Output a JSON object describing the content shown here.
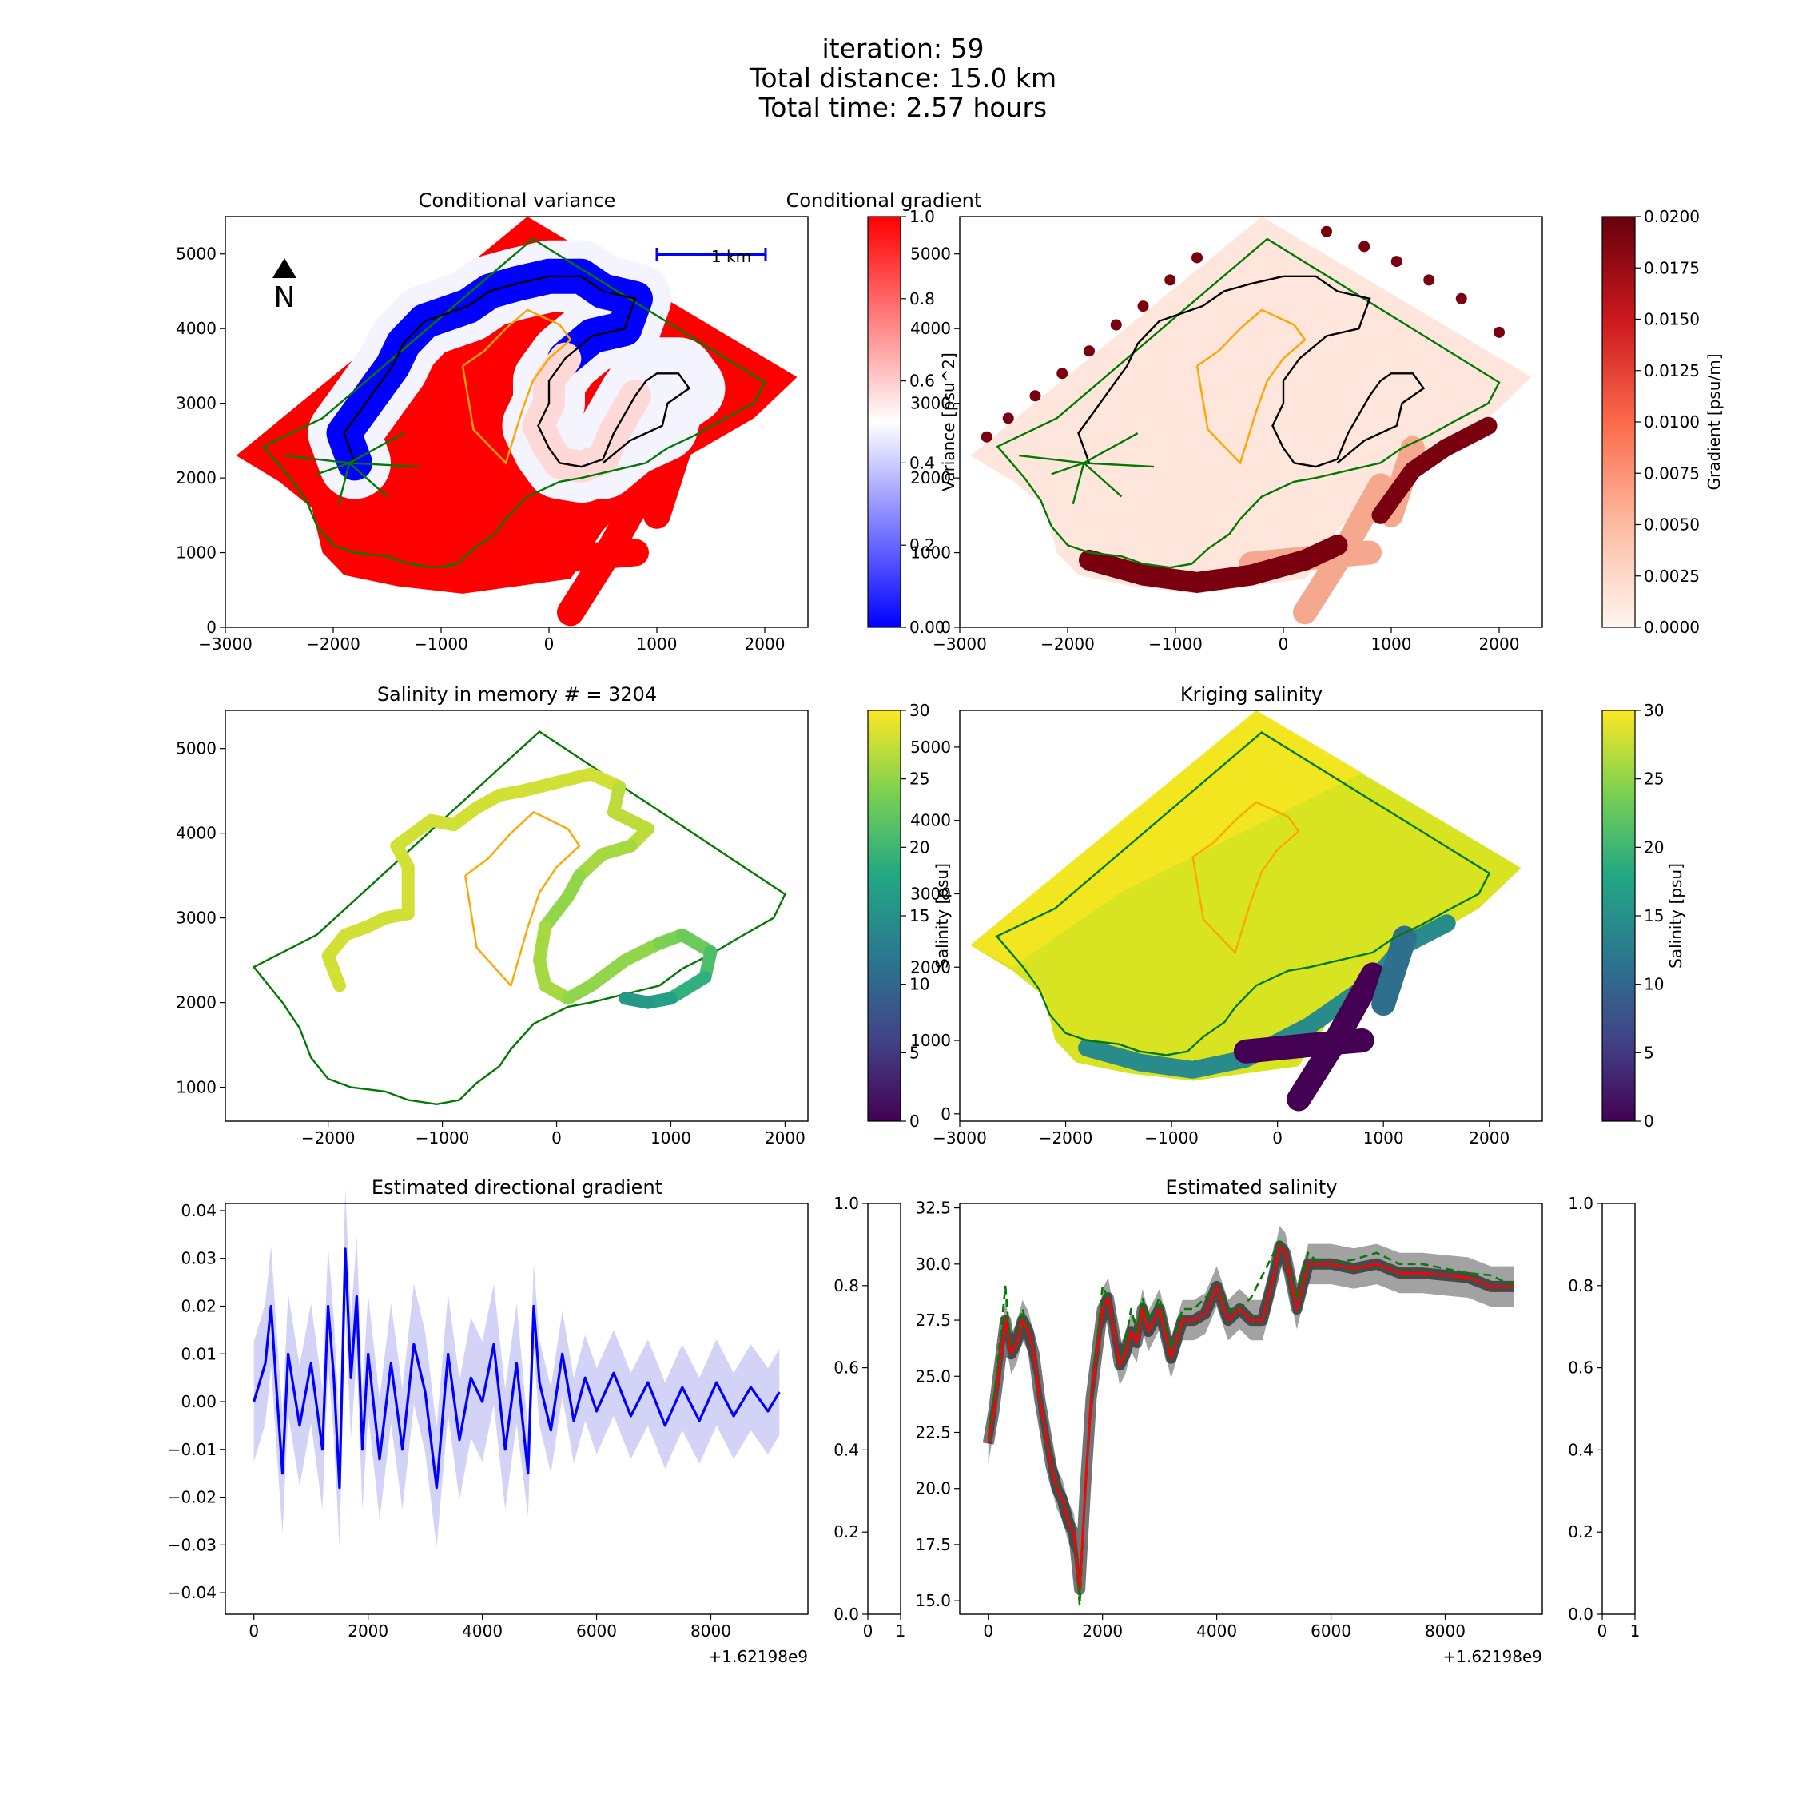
{
  "suptitle": [
    "iteration: 59",
    "Total distance: 15.0 km",
    "Total time: 2.57 hours"
  ],
  "colors": {
    "boundary": "#007a00",
    "contour": "#000000",
    "orange": "#ffa500",
    "scalebar": "#0000ff",
    "gradient_line": "#0000ff",
    "gradient_band": "#c8c8f5",
    "salinity_mean": "#ff0000",
    "salinity_true": "#008000",
    "salinity_samples": "#000000"
  },
  "panels": {
    "variance": {
      "title": "Conditional variance",
      "xticks": [
        "−3000",
        "−2000",
        "−1000",
        "0",
        "1000",
        "2000"
      ],
      "yticks": [
        "0",
        "1000",
        "2000",
        "3000",
        "4000",
        "5000"
      ],
      "xlim": [
        -3000,
        2400
      ],
      "ylim": [
        0,
        5500
      ],
      "north_label": "N",
      "scalebar_label": "1 km",
      "colorbar": {
        "label": "Variance [psu^2]",
        "ticks": [
          "0.00",
          "0.2",
          "0.4",
          "0.6",
          "0.8",
          "1.0"
        ],
        "cmap": "bwr"
      }
    },
    "gradient": {
      "title": "Conditional gradient",
      "xticks": [
        "−3000",
        "−2000",
        "−1000",
        "0",
        "1000",
        "2000"
      ],
      "yticks": [
        "0",
        "1000",
        "2000",
        "3000",
        "4000",
        "5000"
      ],
      "xlim": [
        -3000,
        2400
      ],
      "ylim": [
        0,
        5500
      ],
      "colorbar": {
        "label": "Gradient [psu/m]",
        "ticks": [
          "0.0000",
          "0.0025",
          "0.0050",
          "0.0075",
          "0.0100",
          "0.0125",
          "0.0150",
          "0.0175",
          "0.0200"
        ],
        "cmap": "Reds"
      }
    },
    "memory": {
      "title": "Salinity in memory # = 3204",
      "xticks": [
        "−2000",
        "−1000",
        "0",
        "1000",
        "2000"
      ],
      "yticks": [
        "1000",
        "2000",
        "3000",
        "4000",
        "5000"
      ],
      "xlim": [
        -2900,
        2200
      ],
      "ylim": [
        600,
        5450
      ],
      "colorbar": {
        "label": "Salinity [psu]",
        "ticks": [
          "0",
          "5",
          "10",
          "15",
          "20",
          "25",
          "30"
        ],
        "cmap": "viridis"
      }
    },
    "kriging": {
      "title": "Kriging salinity",
      "xticks": [
        "−3000",
        "−2000",
        "−1000",
        "0",
        "1000",
        "2000"
      ],
      "yticks": [
        "0",
        "1000",
        "2000",
        "3000",
        "4000",
        "5000"
      ],
      "xlim": [
        -3000,
        2500
      ],
      "ylim": [
        -100,
        5500
      ],
      "colorbar": {
        "label": "Salinity [psu]",
        "ticks": [
          "0",
          "5",
          "10",
          "15",
          "20",
          "25",
          "30"
        ],
        "cmap": "viridis"
      }
    },
    "dir_gradient": {
      "title": "Estimated directional gradient",
      "xticks": [
        "0",
        "2000",
        "4000",
        "6000",
        "8000"
      ],
      "yticks": [
        "−0.04",
        "−0.03",
        "−0.02",
        "−0.01",
        "0.00",
        "0.01",
        "0.02",
        "0.03",
        "0.04"
      ],
      "offset": "+1.62198e9",
      "xlim": [
        -500,
        9700
      ],
      "ylim": [
        -0.0445,
        0.0415
      ]
    },
    "est_salinity": {
      "title": "Estimated salinity",
      "xticks": [
        "0",
        "2000",
        "4000",
        "6000",
        "8000"
      ],
      "yticks": [
        "15.0",
        "17.5",
        "20.0",
        "22.5",
        "25.0",
        "27.5",
        "30.0",
        "32.5"
      ],
      "offset": "+1.62198e9",
      "xlim": [
        -500,
        9700
      ],
      "ylim": [
        14.4,
        32.7
      ]
    },
    "empty_left": {
      "xticks": [
        "0",
        "1"
      ],
      "yticks": [
        "0.0",
        "0.2",
        "0.4",
        "0.6",
        "0.8",
        "1.0"
      ]
    },
    "empty_right": {
      "xticks": [
        "0",
        "1"
      ],
      "yticks": [
        "0.0",
        "0.2",
        "0.4",
        "0.6",
        "0.8",
        "1.0"
      ]
    }
  },
  "chart_data": [
    {
      "type": "heatmap",
      "title": "Conditional variance",
      "xlim": [
        -3000,
        2400
      ],
      "ylim": [
        0,
        5500
      ],
      "boundary_polygon": [
        [
          -2650,
          2420
        ],
        [
          -2100,
          2800
        ],
        [
          -150,
          5200
        ],
        [
          2000,
          3280
        ],
        [
          1900,
          3000
        ],
        [
          1600,
          2770
        ],
        [
          1350,
          2570
        ],
        [
          1100,
          2400
        ],
        [
          900,
          2200
        ],
        [
          600,
          2100
        ],
        [
          300,
          2000
        ],
        [
          100,
          1950
        ],
        [
          -200,
          1750
        ],
        [
          -400,
          1450
        ],
        [
          -500,
          1250
        ],
        [
          -700,
          1050
        ],
        [
          -850,
          850
        ],
        [
          -1050,
          800
        ],
        [
          -1300,
          850
        ],
        [
          -1500,
          950
        ],
        [
          -1800,
          1000
        ],
        [
          -2000,
          1100
        ],
        [
          -2150,
          1350
        ],
        [
          -2250,
          1700
        ],
        [
          -2400,
          2000
        ],
        [
          -2650,
          2420
        ]
      ],
      "contour_path": [
        [
          -1800,
          2200
        ],
        [
          -1900,
          2600
        ],
        [
          -1750,
          2900
        ],
        [
          -1600,
          3200
        ],
        [
          -1450,
          3500
        ],
        [
          -1350,
          3800
        ],
        [
          -1150,
          4100
        ],
        [
          -950,
          4200
        ],
        [
          -750,
          4300
        ],
        [
          -550,
          4500
        ],
        [
          -300,
          4600
        ],
        [
          0,
          4700
        ],
        [
          300,
          4700
        ],
        [
          500,
          4500
        ],
        [
          800,
          4400
        ],
        [
          700,
          4000
        ],
        [
          400,
          3900
        ],
        [
          150,
          3600
        ],
        [
          0,
          3300
        ],
        [
          0,
          3000
        ],
        [
          -100,
          2700
        ],
        [
          0,
          2400
        ],
        [
          100,
          2200
        ],
        [
          300,
          2150
        ],
        [
          500,
          2250
        ],
        [
          600,
          2600
        ],
        [
          700,
          2850
        ],
        [
          800,
          3100
        ],
        [
          900,
          3300
        ],
        [
          1000,
          3400
        ],
        [
          1200,
          3400
        ],
        [
          1300,
          3200
        ],
        [
          1100,
          3000
        ],
        [
          1050,
          2700
        ],
        [
          900,
          2600
        ],
        [
          750,
          2500
        ],
        [
          500,
          2200
        ]
      ],
      "orange_path": [
        [
          -800,
          3500
        ],
        [
          -600,
          3700
        ],
        [
          -400,
          4000
        ],
        [
          -200,
          4250
        ],
        [
          100,
          4050
        ],
        [
          200,
          3850
        ],
        [
          0,
          3600
        ],
        [
          -150,
          3300
        ],
        [
          -250,
          2900
        ],
        [
          -400,
          2200
        ],
        [
          -700,
          2650
        ],
        [
          -800,
          3500
        ]
      ]
    },
    {
      "type": "heatmap",
      "title": "Conditional gradient",
      "xlim": [
        -3000,
        2400
      ],
      "ylim": [
        0,
        5500
      ]
    },
    {
      "type": "scatter",
      "title": "Salinity in memory # = 3204",
      "count": 3204,
      "track": [
        [
          -1900,
          2200
        ],
        [
          -2000,
          2550
        ],
        [
          -1850,
          2800
        ],
        [
          -1650,
          2900
        ],
        [
          -1500,
          3000
        ],
        [
          -1300,
          3050
        ],
        [
          -1300,
          3600
        ],
        [
          -1400,
          3850
        ],
        [
          -1100,
          4150
        ],
        [
          -900,
          4100
        ],
        [
          -700,
          4300
        ],
        [
          -500,
          4450
        ],
        [
          -300,
          4500
        ],
        [
          0,
          4600
        ],
        [
          300,
          4700
        ],
        [
          550,
          4550
        ],
        [
          500,
          4250
        ],
        [
          800,
          4050
        ],
        [
          650,
          3850
        ],
        [
          400,
          3750
        ],
        [
          200,
          3500
        ],
        [
          100,
          3250
        ],
        [
          -100,
          2900
        ],
        [
          -150,
          2500
        ],
        [
          -100,
          2200
        ],
        [
          100,
          2050
        ],
        [
          300,
          2200
        ],
        [
          600,
          2500
        ],
        [
          900,
          2700
        ],
        [
          1100,
          2800
        ],
        [
          1350,
          2600
        ],
        [
          1300,
          2300
        ],
        [
          1000,
          2050
        ],
        [
          800,
          2000
        ],
        [
          600,
          2050
        ]
      ],
      "color_values": [
        28,
        28,
        28,
        28,
        28,
        28,
        28,
        28,
        28,
        28,
        28,
        28,
        28,
        28,
        28,
        27,
        27,
        27,
        26,
        26,
        25,
        25,
        26,
        26,
        26,
        25,
        25,
        25,
        24,
        23,
        21,
        19,
        17,
        16,
        16
      ]
    },
    {
      "type": "heatmap",
      "title": "Kriging salinity",
      "xlim": [
        -3000,
        2500
      ],
      "ylim": [
        -100,
        5500
      ]
    },
    {
      "type": "line",
      "title": "Estimated directional gradient",
      "x": [
        0,
        200,
        300,
        400,
        500,
        600,
        800,
        1000,
        1200,
        1300,
        1400,
        1500,
        1600,
        1700,
        1800,
        1900,
        2000,
        2200,
        2400,
        2600,
        2800,
        3000,
        3200,
        3400,
        3600,
        3800,
        4000,
        4200,
        4400,
        4600,
        4800,
        4900,
        5000,
        5200,
        5400,
        5600,
        5800,
        6000,
        6300,
        6600,
        6900,
        7200,
        7500,
        7800,
        8100,
        8400,
        8700,
        9000,
        9200
      ],
      "y": [
        0.0,
        0.008,
        0.02,
        0.002,
        -0.015,
        0.01,
        -0.005,
        0.008,
        -0.01,
        0.02,
        0.005,
        -0.018,
        0.032,
        0.005,
        0.022,
        -0.01,
        0.01,
        -0.012,
        0.008,
        -0.01,
        0.012,
        0.002,
        -0.018,
        0.01,
        -0.008,
        0.005,
        0.0,
        0.012,
        -0.01,
        0.008,
        -0.015,
        0.02,
        0.004,
        -0.006,
        0.01,
        -0.004,
        0.005,
        -0.002,
        0.006,
        -0.003,
        0.004,
        -0.005,
        0.003,
        -0.004,
        0.004,
        -0.003,
        0.003,
        -0.002,
        0.002
      ]
    },
    {
      "type": "line",
      "title": "Estimated salinity",
      "x": [
        0,
        100,
        200,
        300,
        400,
        500,
        600,
        700,
        800,
        900,
        1000,
        1100,
        1200,
        1300,
        1400,
        1500,
        1600,
        1700,
        1800,
        1900,
        2000,
        2100,
        2200,
        2300,
        2400,
        2500,
        2600,
        2700,
        2800,
        3000,
        3200,
        3400,
        3600,
        3800,
        4000,
        4200,
        4400,
        4600,
        4800,
        5000,
        5100,
        5200,
        5400,
        5600,
        5800,
        6000,
        6400,
        6800,
        7200,
        7600,
        8000,
        8400,
        8800,
        9200
      ],
      "series": [
        {
          "values": [
            22.0,
            23.5,
            25.5,
            27.5,
            26.0,
            26.5,
            27.5,
            27.0,
            26.0,
            24.0,
            22.5,
            21.0,
            20.0,
            19.5,
            18.5,
            18.0,
            15.5,
            20.0,
            24.0,
            26.0,
            28.0,
            28.5,
            27.0,
            25.5,
            26.0,
            27.0,
            26.5,
            28.0,
            27.0,
            28.0,
            25.8,
            27.5,
            27.5,
            27.8,
            29.0,
            27.5,
            28.0,
            27.5,
            27.5,
            29.5,
            30.8,
            30.5,
            28.0,
            30.0,
            30.0,
            30.0,
            29.8,
            30.0,
            29.6,
            29.6,
            29.5,
            29.4,
            29.0,
            29.0
          ]
        },
        {
          "values": [
            22.2,
            24.0,
            26.5,
            29.0,
            26.0,
            26.5,
            28.0,
            27.0,
            26.0,
            24.0,
            22.5,
            21.0,
            20.0,
            19.5,
            18.5,
            18.0,
            14.8,
            20.0,
            24.0,
            26.5,
            29.0,
            28.5,
            27.0,
            25.5,
            26.5,
            28.0,
            27.0,
            28.5,
            27.5,
            28.5,
            26.0,
            28.0,
            28.0,
            28.5,
            29.0,
            28.0,
            28.0,
            28.5,
            29.5,
            30.5,
            31.0,
            30.5,
            28.5,
            30.5,
            30.0,
            30.0,
            30.2,
            30.5,
            30.0,
            30.0,
            29.8,
            29.6,
            29.5,
            29.0
          ]
        }
      ]
    }
  ]
}
